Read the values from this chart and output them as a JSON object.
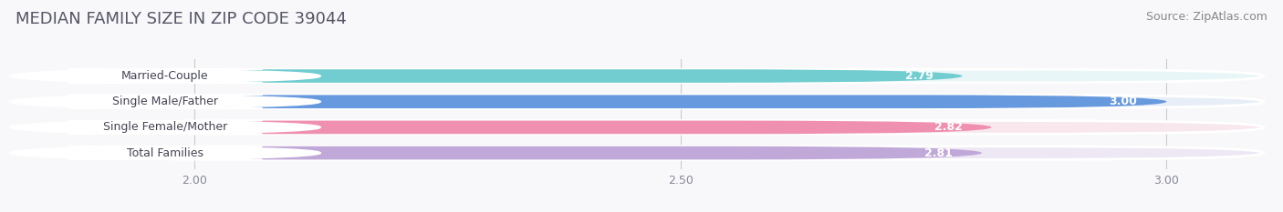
{
  "title": "MEDIAN FAMILY SIZE IN ZIP CODE 39044",
  "source": "Source: ZipAtlas.com",
  "categories": [
    "Married-Couple",
    "Single Male/Father",
    "Single Female/Mother",
    "Total Families"
  ],
  "values": [
    2.79,
    3.0,
    2.82,
    2.81
  ],
  "bar_colors": [
    "#72CDD0",
    "#6699DD",
    "#F090B0",
    "#C0A8D8"
  ],
  "bar_bg_colors": [
    "#E8F6F7",
    "#E8EEF8",
    "#F8E8EE",
    "#EEE8F4"
  ],
  "xlim_min": 1.82,
  "xlim_max": 3.1,
  "xticks": [
    2.0,
    2.5,
    3.0
  ],
  "value_label_color": "#FFFFFF",
  "title_color": "#555566",
  "source_color": "#888888",
  "title_fontsize": 13,
  "label_fontsize": 9,
  "value_fontsize": 9,
  "source_fontsize": 9,
  "tick_fontsize": 9,
  "bg_color": "#F8F8FA",
  "figsize": [
    14.06,
    2.33
  ],
  "dpi": 100
}
